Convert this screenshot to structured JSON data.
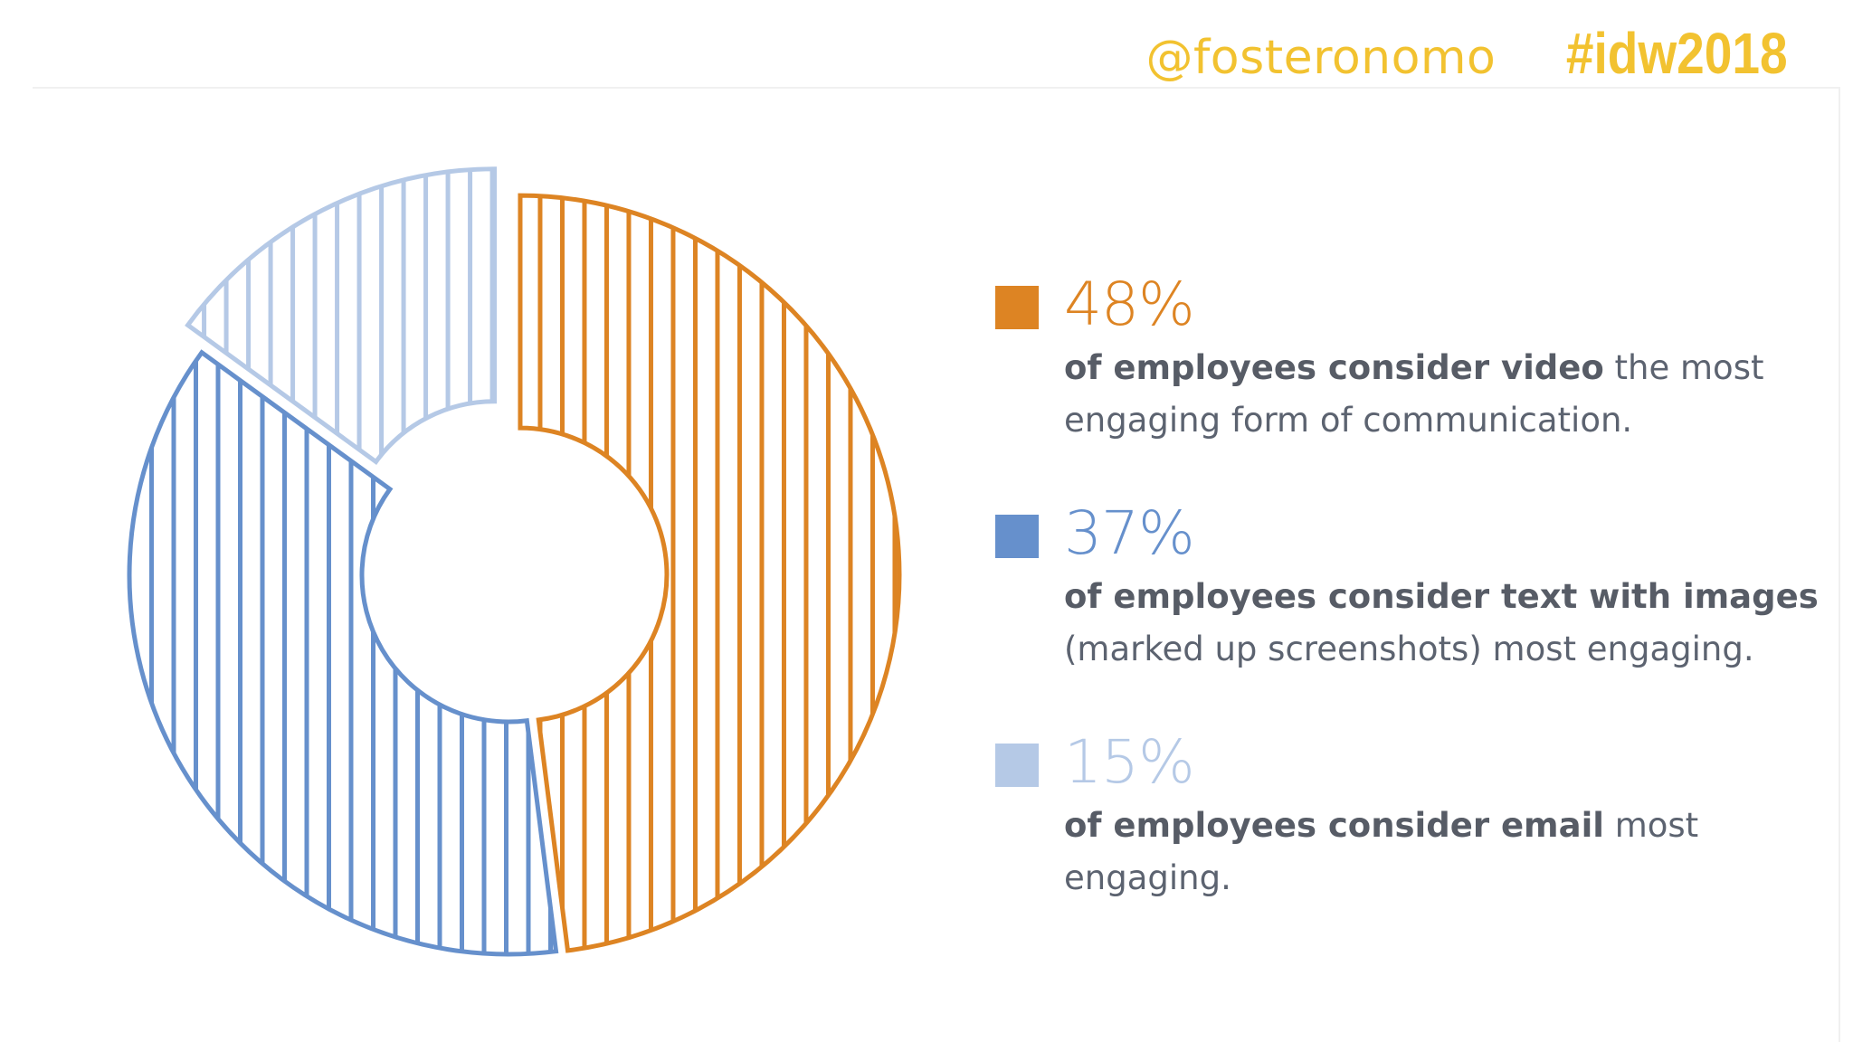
{
  "header": {
    "handle": "@fosteronomo",
    "hashtag": "#idw2018"
  },
  "colors": {
    "video": "#dd8423",
    "text_images": "#6690cc",
    "email": "#b5c9e6",
    "brand_yellow": "#f2c230"
  },
  "chart_data": {
    "type": "pie",
    "style": "donut",
    "exploded": true,
    "title": "",
    "series": [
      {
        "percent_label": "48%",
        "value": 48,
        "color": "#dd8423",
        "desc_bold": "of employees consider video",
        "desc_rest": " the most engaging form of communication."
      },
      {
        "percent_label": "37%",
        "value": 37,
        "color": "#6690cc",
        "desc_bold": "of employees consider text with images",
        "desc_rest": " (marked up screenshots) most engaging."
      },
      {
        "percent_label": "15%",
        "value": 15,
        "color": "#b5c9e6",
        "desc_bold": "of employees consider email",
        "desc_rest": " most engaging."
      }
    ],
    "legend": "right"
  }
}
